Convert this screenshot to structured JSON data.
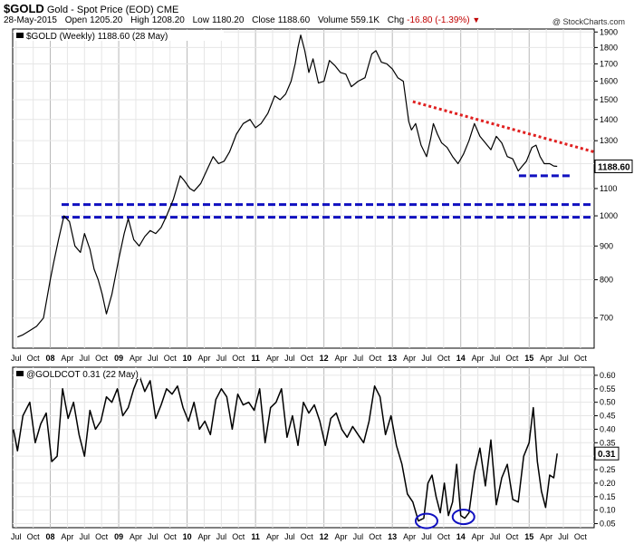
{
  "header": {
    "symbol": "$GOLD",
    "name": "Gold - Spot Price (EOD)",
    "exchange": "CME",
    "date": "28-May-2015",
    "open_label": "Open",
    "open": "1205.20",
    "high_label": "High",
    "high": "1208.20",
    "low_label": "Low",
    "low": "1180.20",
    "close_label": "Close",
    "close": "1188.60",
    "volume_label": "Volume",
    "volume": "559.1K",
    "chg_label": "Chg",
    "chg": "-16.80 (-1.39%)",
    "credit": "@ StockCharts.com",
    "down_icon": "triangle-down-icon"
  },
  "chart_data": [
    {
      "type": "line",
      "legend": "$GOLD (Weekly) 1188.60 (28 May)",
      "last_value_label": "1188.60",
      "scale": "log",
      "ylim": [
        630,
        1920
      ],
      "y_ticks": [
        700,
        800,
        900,
        1000,
        1100,
        1200,
        1300,
        1400,
        1500,
        1600,
        1700,
        1800,
        1900
      ],
      "x_range": [
        2007.45,
        2015.95
      ],
      "x": [
        2007.52,
        2007.6,
        2007.7,
        2007.8,
        2007.9,
        2008.0,
        2008.05,
        2008.12,
        2008.2,
        2008.28,
        2008.36,
        2008.44,
        2008.5,
        2008.58,
        2008.64,
        2008.7,
        2008.76,
        2008.82,
        2008.9,
        2009.0,
        2009.08,
        2009.14,
        2009.22,
        2009.3,
        2009.38,
        2009.46,
        2009.54,
        2009.62,
        2009.7,
        2009.8,
        2009.9,
        2009.96,
        2010.04,
        2010.1,
        2010.2,
        2010.3,
        2010.38,
        2010.46,
        2010.54,
        2010.62,
        2010.72,
        2010.82,
        2010.92,
        2011.0,
        2011.08,
        2011.18,
        2011.28,
        2011.36,
        2011.44,
        2011.52,
        2011.58,
        2011.62,
        2011.66,
        2011.72,
        2011.78,
        2011.84,
        2011.92,
        2012.0,
        2012.08,
        2012.16,
        2012.24,
        2012.32,
        2012.4,
        2012.5,
        2012.6,
        2012.7,
        2012.76,
        2012.84,
        2012.92,
        2013.0,
        2013.08,
        2013.16,
        2013.24,
        2013.28,
        2013.34,
        2013.42,
        2013.5,
        2013.56,
        2013.6,
        2013.66,
        2013.72,
        2013.8,
        2013.88,
        2013.96,
        2014.04,
        2014.12,
        2014.2,
        2014.28,
        2014.36,
        2014.44,
        2014.52,
        2014.6,
        2014.68,
        2014.76,
        2014.84,
        2014.9,
        2014.96,
        2015.04,
        2015.1,
        2015.16,
        2015.22,
        2015.3,
        2015.36,
        2015.41
      ],
      "y": [
        655,
        660,
        670,
        680,
        700,
        800,
        850,
        920,
        1000,
        980,
        900,
        880,
        940,
        890,
        830,
        800,
        760,
        710,
        760,
        860,
        940,
        990,
        920,
        900,
        930,
        950,
        940,
        960,
        1000,
        1060,
        1150,
        1130,
        1100,
        1090,
        1120,
        1180,
        1230,
        1200,
        1210,
        1250,
        1330,
        1380,
        1400,
        1360,
        1380,
        1430,
        1520,
        1500,
        1530,
        1600,
        1700,
        1800,
        1880,
        1780,
        1650,
        1730,
        1590,
        1600,
        1720,
        1690,
        1650,
        1640,
        1570,
        1600,
        1620,
        1760,
        1780,
        1710,
        1700,
        1670,
        1620,
        1600,
        1390,
        1350,
        1380,
        1280,
        1230,
        1310,
        1380,
        1330,
        1290,
        1270,
        1230,
        1200,
        1240,
        1300,
        1380,
        1320,
        1290,
        1260,
        1320,
        1290,
        1230,
        1220,
        1170,
        1190,
        1210,
        1270,
        1280,
        1230,
        1200,
        1200,
        1190,
        1188.6
      ],
      "x_tick_labels": [
        "Jul",
        "Oct",
        "08",
        "Apr",
        "Jul",
        "Oct",
        "09",
        "Apr",
        "Jul",
        "Oct",
        "10",
        "Apr",
        "Jul",
        "Oct",
        "11",
        "Apr",
        "Jul",
        "Oct",
        "12",
        "Apr",
        "Jul",
        "Oct",
        "13",
        "Apr",
        "Jul",
        "Oct",
        "14",
        "Apr",
        "Jul",
        "Oct",
        "15",
        "Apr",
        "Jul",
        "Oct"
      ],
      "x_tick_values": [
        2007.5,
        2007.75,
        2008.0,
        2008.25,
        2008.5,
        2008.75,
        2009.0,
        2009.25,
        2009.5,
        2009.75,
        2010.0,
        2010.25,
        2010.5,
        2010.75,
        2011.0,
        2011.25,
        2011.5,
        2011.75,
        2012.0,
        2012.25,
        2012.5,
        2012.75,
        2013.0,
        2013.25,
        2013.5,
        2013.75,
        2014.0,
        2014.25,
        2014.5,
        2014.75,
        2015.0,
        2015.25,
        2015.5,
        2015.75
      ],
      "year_labels": [
        "08",
        "09",
        "10",
        "11",
        "12",
        "13",
        "14",
        "15"
      ],
      "support_lines": [
        1040,
        995
      ],
      "support_short": {
        "x": [
          2014.85,
          2015.6
        ],
        "y": 1150
      },
      "resistance_line": {
        "x": [
          2013.3,
          2015.95
        ],
        "y": [
          1490,
          1250
        ]
      },
      "colors": {
        "price": "#000000",
        "support": "#1010c0",
        "resistance": "#e02020"
      }
    },
    {
      "type": "line",
      "legend": "@GOLDCOT 0.31 (22 May)",
      "last_value_label": "0.31",
      "ylim": [
        0.035,
        0.63
      ],
      "y_ticks": [
        0.05,
        0.1,
        0.15,
        0.2,
        0.25,
        0.3,
        0.35,
        0.4,
        0.45,
        0.5,
        0.55,
        0.6
      ],
      "y_tick_labels": [
        "0.05",
        "0.10",
        "0.15",
        "0.20",
        "0.25",
        "0.30",
        "0.35",
        "0.40",
        "0.45",
        "0.50",
        "0.55",
        "0.60"
      ],
      "x_range": [
        2007.45,
        2015.95
      ],
      "x": [
        2007.46,
        2007.52,
        2007.6,
        2007.7,
        2007.78,
        2007.86,
        2007.94,
        2008.02,
        2008.1,
        2008.18,
        2008.26,
        2008.34,
        2008.42,
        2008.5,
        2008.58,
        2008.66,
        2008.74,
        2008.82,
        2008.9,
        2008.98,
        2009.06,
        2009.14,
        2009.22,
        2009.3,
        2009.38,
        2009.46,
        2009.54,
        2009.62,
        2009.7,
        2009.78,
        2009.86,
        2009.94,
        2010.02,
        2010.1,
        2010.18,
        2010.26,
        2010.34,
        2010.42,
        2010.5,
        2010.58,
        2010.66,
        2010.74,
        2010.82,
        2010.9,
        2010.98,
        2011.06,
        2011.14,
        2011.22,
        2011.3,
        2011.38,
        2011.46,
        2011.54,
        2011.62,
        2011.7,
        2011.78,
        2011.86,
        2011.94,
        2012.02,
        2012.1,
        2012.18,
        2012.26,
        2012.34,
        2012.42,
        2012.5,
        2012.58,
        2012.66,
        2012.74,
        2012.82,
        2012.9,
        2012.98,
        2013.06,
        2013.14,
        2013.22,
        2013.3,
        2013.38,
        2013.46,
        2013.52,
        2013.58,
        2013.64,
        2013.7,
        2013.76,
        2013.82,
        2013.88,
        2013.94,
        2014.0,
        2014.06,
        2014.12,
        2014.2,
        2014.28,
        2014.36,
        2014.44,
        2014.52,
        2014.6,
        2014.68,
        2014.76,
        2014.84,
        2014.92,
        2015.0,
        2015.06,
        2015.12,
        2015.18,
        2015.24,
        2015.3,
        2015.36,
        2015.41
      ],
      "y": [
        0.4,
        0.32,
        0.45,
        0.5,
        0.35,
        0.42,
        0.46,
        0.28,
        0.3,
        0.55,
        0.44,
        0.5,
        0.38,
        0.3,
        0.47,
        0.4,
        0.43,
        0.52,
        0.5,
        0.55,
        0.45,
        0.48,
        0.55,
        0.6,
        0.54,
        0.58,
        0.44,
        0.49,
        0.55,
        0.53,
        0.56,
        0.48,
        0.43,
        0.5,
        0.4,
        0.43,
        0.38,
        0.51,
        0.55,
        0.52,
        0.4,
        0.53,
        0.49,
        0.5,
        0.47,
        0.55,
        0.35,
        0.48,
        0.5,
        0.55,
        0.37,
        0.45,
        0.34,
        0.5,
        0.46,
        0.49,
        0.43,
        0.34,
        0.44,
        0.46,
        0.4,
        0.37,
        0.41,
        0.38,
        0.35,
        0.43,
        0.56,
        0.52,
        0.38,
        0.45,
        0.34,
        0.27,
        0.16,
        0.13,
        0.06,
        0.07,
        0.2,
        0.23,
        0.15,
        0.09,
        0.2,
        0.08,
        0.13,
        0.27,
        0.08,
        0.07,
        0.09,
        0.24,
        0.33,
        0.19,
        0.36,
        0.12,
        0.22,
        0.27,
        0.14,
        0.13,
        0.3,
        0.35,
        0.48,
        0.28,
        0.17,
        0.11,
        0.23,
        0.22,
        0.31
      ],
      "x_tick_labels": [
        "Jul",
        "Oct",
        "08",
        "Apr",
        "Jul",
        "Oct",
        "09",
        "Apr",
        "Jul",
        "Oct",
        "10",
        "Apr",
        "Jul",
        "Oct",
        "11",
        "Apr",
        "Jul",
        "Oct",
        "12",
        "Apr",
        "Jul",
        "Oct",
        "13",
        "Apr",
        "Jul",
        "Oct",
        "14",
        "Apr",
        "Jul",
        "Oct",
        "15",
        "Apr",
        "Jul",
        "Oct"
      ],
      "x_tick_values": [
        2007.5,
        2007.75,
        2008.0,
        2008.25,
        2008.5,
        2008.75,
        2009.0,
        2009.25,
        2009.5,
        2009.75,
        2010.0,
        2010.25,
        2010.5,
        2010.75,
        2011.0,
        2011.25,
        2011.5,
        2011.75,
        2012.0,
        2012.25,
        2012.5,
        2012.75,
        2013.0,
        2013.25,
        2013.5,
        2013.75,
        2014.0,
        2014.25,
        2014.5,
        2014.75,
        2015.0,
        2015.25,
        2015.5,
        2015.75
      ],
      "year_labels": [
        "08",
        "09",
        "10",
        "11",
        "12",
        "13",
        "14",
        "15"
      ],
      "circled_lows": [
        {
          "x": 2013.5,
          "y": 0.06
        },
        {
          "x": 2014.04,
          "y": 0.075
        }
      ],
      "colors": {
        "line": "#000000",
        "circle": "#1010c0"
      }
    }
  ]
}
